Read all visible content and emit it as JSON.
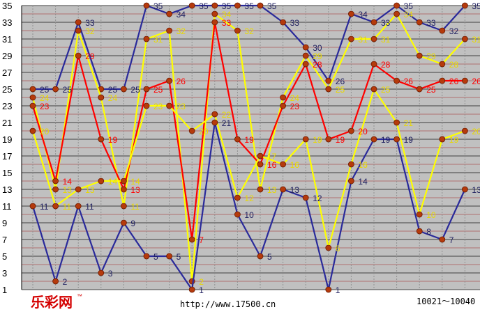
{
  "chart_data": {
    "type": "line",
    "title": "",
    "xlabel": "",
    "ylabel": "",
    "ylim": [
      1,
      35
    ],
    "y_ticks": [
      1,
      3,
      5,
      7,
      9,
      11,
      13,
      15,
      17,
      19,
      21,
      23,
      25,
      27,
      29,
      31,
      33,
      35
    ],
    "grid": true,
    "x": [
      1,
      2,
      3,
      4,
      5,
      6,
      7,
      8,
      9,
      10,
      11,
      12,
      13,
      14,
      15,
      16,
      17,
      18,
      19,
      20
    ],
    "series": [
      {
        "color": "#2a2a9a",
        "label_color": "#202060",
        "values": [
          25,
          25,
          33,
          25,
          25,
          35,
          34,
          35,
          35,
          35,
          35,
          33,
          30,
          26,
          34,
          33,
          35,
          33,
          32,
          35
        ]
      },
      {
        "color": "#ffff00",
        "label_color": "#e8d800",
        "values": [
          24,
          13,
          32,
          24,
          11,
          31,
          32,
          2,
          34,
          32,
          13,
          24,
          29,
          25,
          31,
          31,
          34,
          29,
          28,
          31
        ]
      },
      {
        "color": "#ff0000",
        "label_color": "#ff0000",
        "values": [
          23,
          14,
          29,
          19,
          13,
          25,
          26,
          7,
          33,
          19,
          16,
          23,
          28,
          19,
          20,
          28,
          26,
          25,
          26,
          26
        ]
      },
      {
        "color": "#ffff00",
        "label_color": "#e8d800",
        "values": [
          20,
          11,
          13,
          14,
          14,
          23,
          23,
          20,
          22,
          12,
          17,
          16,
          19,
          6,
          16,
          25,
          21,
          10,
          19,
          20
        ]
      },
      {
        "color": "#2a2a9a",
        "label_color": "#202060",
        "values": [
          11,
          2,
          11,
          3,
          9,
          5,
          5,
          1,
          21,
          10,
          5,
          13,
          12,
          1,
          14,
          19,
          19,
          8,
          7,
          13
        ]
      }
    ]
  },
  "brand": {
    "text": "乐彩网",
    "tm": "™"
  },
  "footer": {
    "url": "http://www.17500.cn",
    "range": "10021～10040"
  }
}
